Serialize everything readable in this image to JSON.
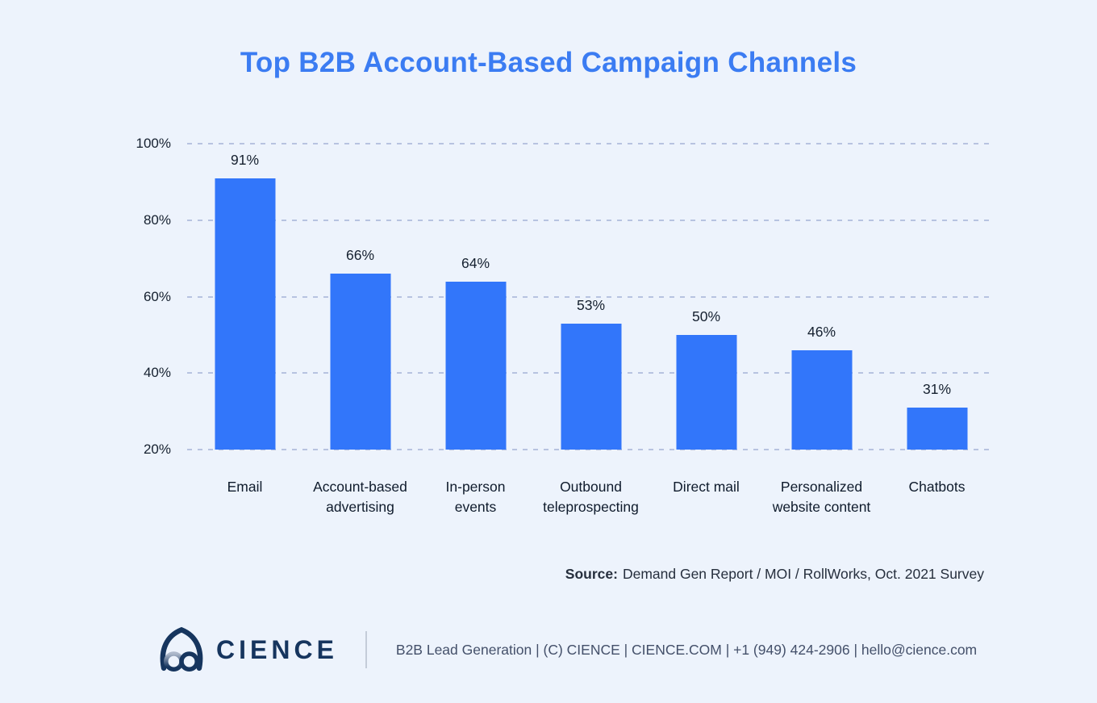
{
  "chart_data": {
    "type": "bar",
    "title": "Top B2B Account-Based Campaign Channels",
    "categories": [
      "Email",
      "Account-based advertising",
      "In-person events",
      "Outbound teleprospecting",
      "Direct mail",
      "Personalized website content",
      "Chatbots"
    ],
    "category_lines": [
      [
        "Email"
      ],
      [
        "Account-based",
        "advertising"
      ],
      [
        "In-person",
        "events"
      ],
      [
        "Outbound",
        "teleprospecting"
      ],
      [
        "Direct mail"
      ],
      [
        "Personalized",
        "website content"
      ],
      [
        "Chatbots"
      ]
    ],
    "values": [
      91,
      66,
      64,
      53,
      50,
      46,
      31
    ],
    "unit": "%",
    "yticks": [
      "100%",
      "80%",
      "60%",
      "40%",
      "20%"
    ],
    "ytick_values": [
      100,
      80,
      60,
      40,
      20
    ],
    "ylim": [
      20,
      100
    ],
    "grid": "horizontal dashed",
    "legend": "none",
    "xlabel": "",
    "ylabel": ""
  },
  "source": {
    "label": "Source:",
    "text": "Demand Gen Report / MOI / RollWorks, Oct. 2021 Survey"
  },
  "footer": {
    "brand": "CIENCE",
    "info": "B2B Lead Generation | (C) CIENCE | CIENCE.COM | +1 (949) 424-2906 | hello@cience.com"
  },
  "colors": {
    "background": "#edf3fc",
    "bar": "#3276fa",
    "title": "#3b7cf2",
    "grid": "#b7c3e0",
    "text": "#15202f",
    "category": "#0f1b2c",
    "source": "#262f3d",
    "footer_text": "#44506a",
    "navy": "#16355e",
    "divider": "#c4ccd9"
  }
}
